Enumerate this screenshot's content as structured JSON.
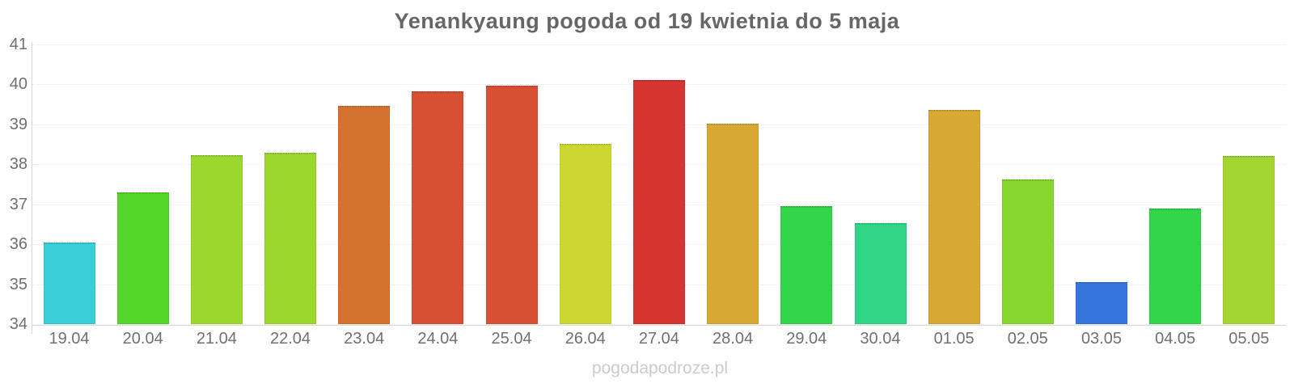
{
  "chart_data": {
    "type": "bar",
    "title": "Yenankyaung pogoda od 19 kwietnia do 5 maja",
    "categories": [
      "19.04",
      "20.04",
      "21.04",
      "22.04",
      "23.04",
      "24.04",
      "25.04",
      "26.04",
      "27.04",
      "28.04",
      "29.04",
      "30.04",
      "01.05",
      "02.05",
      "03.05",
      "04.05",
      "05.05"
    ],
    "values": [
      36.05,
      37.3,
      38.22,
      38.28,
      39.47,
      39.82,
      39.96,
      38.52,
      40.1,
      39.02,
      36.95,
      36.52,
      39.37,
      37.62,
      35.05,
      36.9,
      38.2
    ],
    "bar_colors": [
      "#38cfd8",
      "#55d62b",
      "#9cd72e",
      "#9cd72e",
      "#d6722f",
      "#d85034",
      "#d85034",
      "#ccd832",
      "#d73531",
      "#d8a832",
      "#33d549",
      "#30d685",
      "#d8a832",
      "#88d630",
      "#3576dc",
      "#33d549",
      "#a2d631"
    ],
    "xlabel": "",
    "ylabel": "",
    "ylim": [
      34,
      41
    ],
    "yticks": [
      34,
      35,
      36,
      37,
      38,
      39,
      40,
      41
    ],
    "grid": "horizontal-dotted",
    "legend": "none"
  },
  "footer": {
    "watermark": "pogodapodroze.pl"
  },
  "theme": {
    "background": "#ffffff",
    "title_color": "#666666",
    "tick_color": "#707070",
    "grid_color": "#e7e7e7",
    "axis_color": "#d6d6d6",
    "watermark_color": "#cdcaca"
  }
}
